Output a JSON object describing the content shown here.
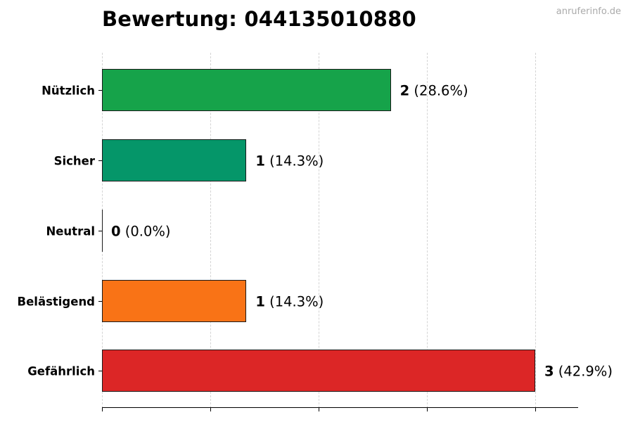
{
  "title": "Bewertung: 044135010880",
  "watermark": "anruferinfo.de",
  "chart_data": {
    "type": "bar",
    "orientation": "horizontal",
    "title": "Bewertung: 044135010880",
    "xlabel": "",
    "ylabel": "",
    "categories": [
      "Nützlich",
      "Sicher",
      "Neutral",
      "Belästigend",
      "Gefährlich"
    ],
    "values": [
      2,
      1,
      0,
      1,
      3
    ],
    "percentages": [
      "28.6%",
      "14.3%",
      "0.0%",
      "14.3%",
      "42.9%"
    ],
    "colors": [
      "#16a34a",
      "#059669",
      "#6b7280",
      "#f97316",
      "#dc2626"
    ],
    "xlim": [
      0,
      3.3
    ],
    "x_gridlines": [
      0,
      0.75,
      1.5,
      2.25,
      3.0
    ],
    "grid": "vertical dashed",
    "legend": "none",
    "x_tick_labels": "hidden"
  },
  "labels": [
    {
      "count": "2",
      "pct": "(28.6%)"
    },
    {
      "count": "1",
      "pct": "(14.3%)"
    },
    {
      "count": "0",
      "pct": "(0.0%)"
    },
    {
      "count": "1",
      "pct": "(14.3%)"
    },
    {
      "count": "3",
      "pct": "(42.9%)"
    }
  ]
}
